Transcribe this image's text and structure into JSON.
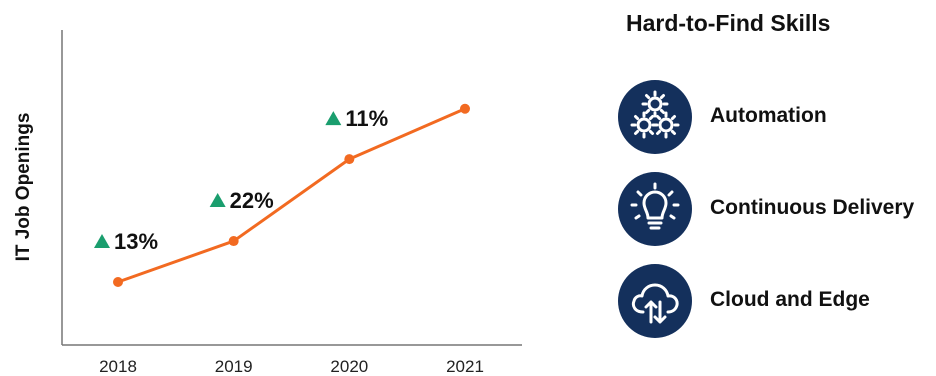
{
  "chart_data": {
    "type": "line",
    "categories": [
      "2018",
      "2019",
      "2020",
      "2021"
    ],
    "values": [
      20,
      33,
      59,
      75
    ],
    "ylabel": "IT Job Openings",
    "xlabel": "",
    "ylim": [
      0,
      100
    ],
    "grid": false,
    "annotations": [
      {
        "category": "2018",
        "text": "13%",
        "direction": "up"
      },
      {
        "category": "2019",
        "text": "22%",
        "direction": "up"
      },
      {
        "category": "2020",
        "text": "11%",
        "direction": "up"
      }
    ],
    "colors": {
      "line": "#f26a21",
      "up_marker": "#1a9e6e",
      "axis": "#777777"
    }
  },
  "skills": {
    "title": "Hard-to-Find Skills",
    "items": [
      {
        "label": "Automation",
        "icon": "gears-icon"
      },
      {
        "label": "Continuous Delivery",
        "icon": "lightbulb-icon"
      },
      {
        "label": "Cloud and Edge",
        "icon": "cloud-sync-icon"
      }
    ],
    "icon_bg": "#14305c"
  }
}
